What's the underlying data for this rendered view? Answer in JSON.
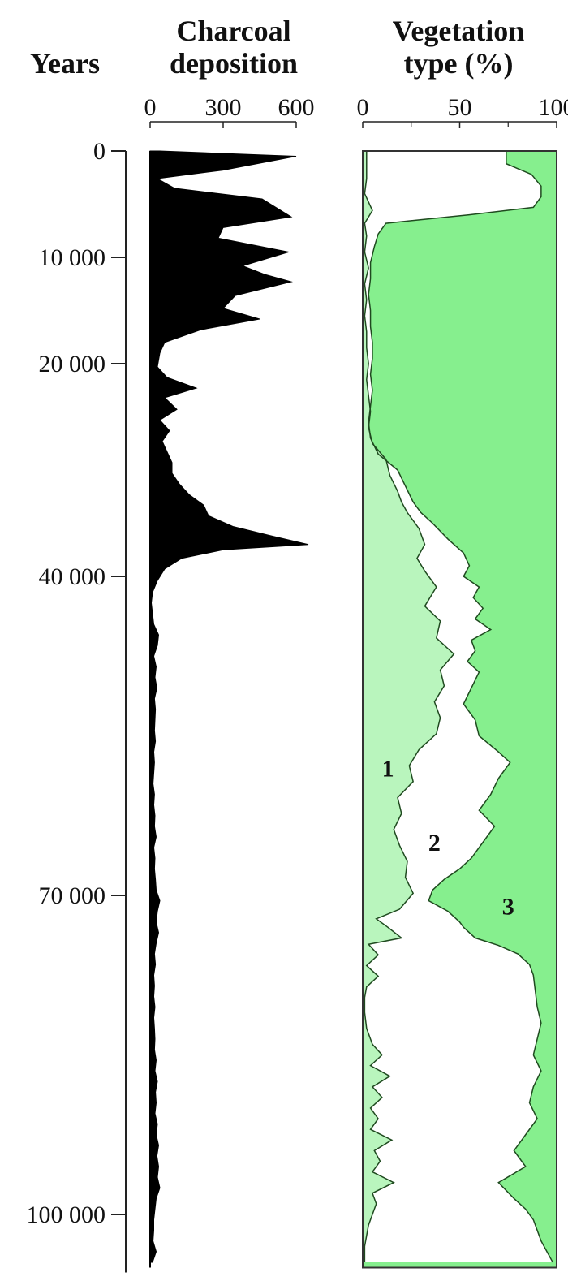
{
  "chart_data": [
    {
      "type": "area",
      "panel": "charcoal",
      "title_lines": [
        "Charcoal",
        "deposition"
      ],
      "y_axis_title": "Years",
      "y_ticks": [
        0,
        10000,
        20000,
        40000,
        70000,
        100000
      ],
      "y_tick_labels": [
        "0",
        "10 000",
        "20 000",
        "40 000",
        "70 000",
        "100 000"
      ],
      "ylim": [
        0,
        105000
      ],
      "x_ticks": [
        0,
        300,
        600
      ],
      "x_tick_labels": [
        "0",
        "300",
        "600"
      ],
      "xlim": [
        0,
        600
      ],
      "color": "#000000",
      "points": [
        [
          0,
          40
        ],
        [
          500,
          600
        ],
        [
          1800,
          300
        ],
        [
          2600,
          30
        ],
        [
          3500,
          100
        ],
        [
          4500,
          460
        ],
        [
          6200,
          580
        ],
        [
          7200,
          300
        ],
        [
          8200,
          280
        ],
        [
          9500,
          570
        ],
        [
          10800,
          380
        ],
        [
          11600,
          470
        ],
        [
          12300,
          580
        ],
        [
          13600,
          350
        ],
        [
          14800,
          300
        ],
        [
          15800,
          450
        ],
        [
          16800,
          210
        ],
        [
          18000,
          60
        ],
        [
          19000,
          40
        ],
        [
          20300,
          30
        ],
        [
          21300,
          70
        ],
        [
          22300,
          190
        ],
        [
          23200,
          60
        ],
        [
          24300,
          110
        ],
        [
          25300,
          40
        ],
        [
          26300,
          80
        ],
        [
          27300,
          50
        ],
        [
          28300,
          70
        ],
        [
          29300,
          90
        ],
        [
          30300,
          90
        ],
        [
          31300,
          120
        ],
        [
          32300,
          160
        ],
        [
          33300,
          220
        ],
        [
          34300,
          240
        ],
        [
          35300,
          340
        ],
        [
          36200,
          500
        ],
        [
          37000,
          650
        ],
        [
          37500,
          300
        ],
        [
          38300,
          130
        ],
        [
          39300,
          60
        ],
        [
          40400,
          30
        ],
        [
          41500,
          10
        ],
        [
          42500,
          5
        ],
        [
          43500,
          10
        ],
        [
          44500,
          15
        ],
        [
          45500,
          35
        ],
        [
          46500,
          30
        ],
        [
          47500,
          15
        ],
        [
          48500,
          25
        ],
        [
          49500,
          20
        ],
        [
          50500,
          28
        ],
        [
          51500,
          18
        ],
        [
          52500,
          22
        ],
        [
          53500,
          20
        ],
        [
          54500,
          18
        ],
        [
          55500,
          22
        ],
        [
          56500,
          15
        ],
        [
          57500,
          18
        ],
        [
          58500,
          15
        ],
        [
          59500,
          12
        ],
        [
          60500,
          18
        ],
        [
          61500,
          15
        ],
        [
          62500,
          20
        ],
        [
          63500,
          18
        ],
        [
          64500,
          25
        ],
        [
          65500,
          15
        ],
        [
          66500,
          20
        ],
        [
          67500,
          18
        ],
        [
          68500,
          22
        ],
        [
          69500,
          25
        ],
        [
          70500,
          40
        ],
        [
          71500,
          30
        ],
        [
          72500,
          25
        ],
        [
          73500,
          35
        ],
        [
          74500,
          25
        ],
        [
          75500,
          18
        ],
        [
          76500,
          22
        ],
        [
          77500,
          15
        ],
        [
          78500,
          18
        ],
        [
          79500,
          15
        ],
        [
          80500,
          20
        ],
        [
          81500,
          15
        ],
        [
          82500,
          18
        ],
        [
          83500,
          20
        ],
        [
          84500,
          18
        ],
        [
          85500,
          25
        ],
        [
          86500,
          20
        ],
        [
          87500,
          30
        ],
        [
          88500,
          22
        ],
        [
          89500,
          25
        ],
        [
          90500,
          20
        ],
        [
          91500,
          30
        ],
        [
          92500,
          25
        ],
        [
          93500,
          35
        ],
        [
          94500,
          28
        ],
        [
          95500,
          35
        ],
        [
          96500,
          30
        ],
        [
          97500,
          40
        ],
        [
          98500,
          25
        ],
        [
          99500,
          20
        ],
        [
          100500,
          15
        ],
        [
          101500,
          15
        ],
        [
          102500,
          12
        ],
        [
          103500,
          25
        ],
        [
          104500,
          10
        ]
      ]
    },
    {
      "type": "area",
      "panel": "vegetation",
      "title_lines": [
        "Vegetation",
        "type (%)"
      ],
      "x_ticks": [
        0,
        50,
        100
      ],
      "x_tick_labels": [
        "0",
        "50",
        "100"
      ],
      "xlim": [
        0,
        100
      ],
      "ylim": [
        0,
        105000
      ],
      "zone_labels": [
        "1",
        "2",
        "3"
      ],
      "zone_label_positions": [
        [
          13,
          58800
        ],
        [
          37,
          65800
        ],
        [
          75,
          71800
        ]
      ],
      "colors": {
        "zone1": "#b9f5bd",
        "zone2": "#ffffff",
        "zone3": "#86ef8e",
        "line": "#1f4a1f"
      },
      "boundary_1_2": [
        [
          0,
          2
        ],
        [
          1200,
          2
        ],
        [
          2600,
          2
        ],
        [
          4000,
          1
        ],
        [
          5600,
          5
        ],
        [
          6800,
          1
        ],
        [
          8000,
          2
        ],
        [
          9500,
          1
        ],
        [
          11000,
          3
        ],
        [
          12500,
          1
        ],
        [
          14000,
          2
        ],
        [
          15500,
          1
        ],
        [
          17000,
          2
        ],
        [
          18500,
          2
        ],
        [
          20000,
          3
        ],
        [
          21500,
          2
        ],
        [
          23000,
          3
        ],
        [
          24500,
          4
        ],
        [
          26000,
          3
        ],
        [
          27500,
          5
        ],
        [
          29000,
          12
        ],
        [
          30500,
          14
        ],
        [
          32000,
          18
        ],
        [
          33000,
          20
        ],
        [
          34000,
          23
        ],
        [
          35500,
          29
        ],
        [
          37000,
          32
        ],
        [
          38300,
          28
        ],
        [
          39500,
          32
        ],
        [
          41000,
          38
        ],
        [
          42800,
          32
        ],
        [
          44200,
          40
        ],
        [
          45800,
          38
        ],
        [
          47300,
          47
        ],
        [
          48800,
          40
        ],
        [
          50300,
          42
        ],
        [
          51800,
          37
        ],
        [
          53300,
          40
        ],
        [
          54800,
          38
        ],
        [
          56300,
          29
        ],
        [
          57800,
          24
        ],
        [
          59300,
          26
        ],
        [
          60800,
          18
        ],
        [
          62300,
          20
        ],
        [
          63800,
          16
        ],
        [
          65300,
          19
        ],
        [
          66800,
          23
        ],
        [
          68300,
          22
        ],
        [
          69800,
          26
        ],
        [
          71300,
          19
        ],
        [
          72200,
          7
        ],
        [
          73000,
          13
        ],
        [
          74000,
          20
        ],
        [
          74600,
          3
        ],
        [
          75600,
          8
        ],
        [
          76600,
          2
        ],
        [
          77600,
          8
        ],
        [
          78600,
          2
        ],
        [
          79600,
          1
        ],
        [
          81000,
          1
        ],
        [
          82500,
          2
        ],
        [
          84000,
          5
        ],
        [
          85000,
          10
        ],
        [
          86000,
          4
        ],
        [
          87000,
          14
        ],
        [
          88000,
          5
        ],
        [
          89000,
          10
        ],
        [
          90000,
          4
        ],
        [
          91000,
          8
        ],
        [
          92000,
          4
        ],
        [
          93000,
          15
        ],
        [
          94000,
          6
        ],
        [
          95000,
          9
        ],
        [
          96000,
          5
        ],
        [
          97000,
          16
        ],
        [
          98000,
          5
        ],
        [
          99000,
          7
        ],
        [
          100000,
          5
        ],
        [
          101000,
          3
        ],
        [
          102000,
          2
        ],
        [
          103000,
          1
        ],
        [
          104500,
          1
        ]
      ],
      "boundary_2_3": [
        [
          0,
          74
        ],
        [
          1200,
          74
        ],
        [
          2200,
          87
        ],
        [
          3300,
          92
        ],
        [
          4300,
          92
        ],
        [
          5300,
          88
        ],
        [
          6000,
          55
        ],
        [
          6800,
          12
        ],
        [
          7800,
          8
        ],
        [
          9000,
          6
        ],
        [
          10500,
          4
        ],
        [
          12000,
          4
        ],
        [
          13500,
          3
        ],
        [
          15000,
          4
        ],
        [
          16500,
          4
        ],
        [
          18000,
          5
        ],
        [
          19500,
          5
        ],
        [
          21000,
          4
        ],
        [
          22500,
          5
        ],
        [
          24000,
          4
        ],
        [
          25500,
          3
        ],
        [
          27000,
          4
        ],
        [
          28500,
          8
        ],
        [
          30000,
          18
        ],
        [
          31500,
          22
        ],
        [
          33000,
          26
        ],
        [
          34000,
          30
        ],
        [
          35000,
          36
        ],
        [
          36500,
          44
        ],
        [
          37800,
          52
        ],
        [
          39000,
          55
        ],
        [
          40000,
          52
        ],
        [
          41000,
          60
        ],
        [
          42000,
          57
        ],
        [
          43000,
          62
        ],
        [
          44000,
          58
        ],
        [
          45000,
          66
        ],
        [
          46000,
          56
        ],
        [
          47000,
          58
        ],
        [
          48000,
          54
        ],
        [
          49000,
          60
        ],
        [
          50500,
          56
        ],
        [
          52000,
          52
        ],
        [
          53500,
          58
        ],
        [
          55000,
          60
        ],
        [
          56500,
          70
        ],
        [
          57500,
          76
        ],
        [
          59000,
          70
        ],
        [
          60500,
          66
        ],
        [
          62000,
          60
        ],
        [
          63500,
          68
        ],
        [
          65000,
          62
        ],
        [
          66500,
          56
        ],
        [
          67500,
          50
        ],
        [
          68500,
          42
        ],
        [
          69500,
          36
        ],
        [
          70500,
          34
        ],
        [
          71500,
          44
        ],
        [
          72500,
          50
        ],
        [
          73000,
          52
        ],
        [
          74000,
          58
        ],
        [
          74700,
          70
        ],
        [
          75500,
          80
        ],
        [
          76500,
          86
        ],
        [
          77500,
          88
        ],
        [
          79000,
          89
        ],
        [
          80500,
          90
        ],
        [
          82000,
          92
        ],
        [
          83500,
          90
        ],
        [
          85000,
          88
        ],
        [
          86500,
          92
        ],
        [
          88000,
          88
        ],
        [
          89500,
          86
        ],
        [
          91000,
          90
        ],
        [
          92500,
          84
        ],
        [
          94000,
          78
        ],
        [
          95500,
          84
        ],
        [
          97000,
          70
        ],
        [
          98500,
          78
        ],
        [
          99500,
          84
        ],
        [
          100500,
          88
        ],
        [
          101500,
          90
        ],
        [
          102500,
          92
        ],
        [
          103500,
          95
        ],
        [
          104500,
          98
        ]
      ]
    }
  ]
}
